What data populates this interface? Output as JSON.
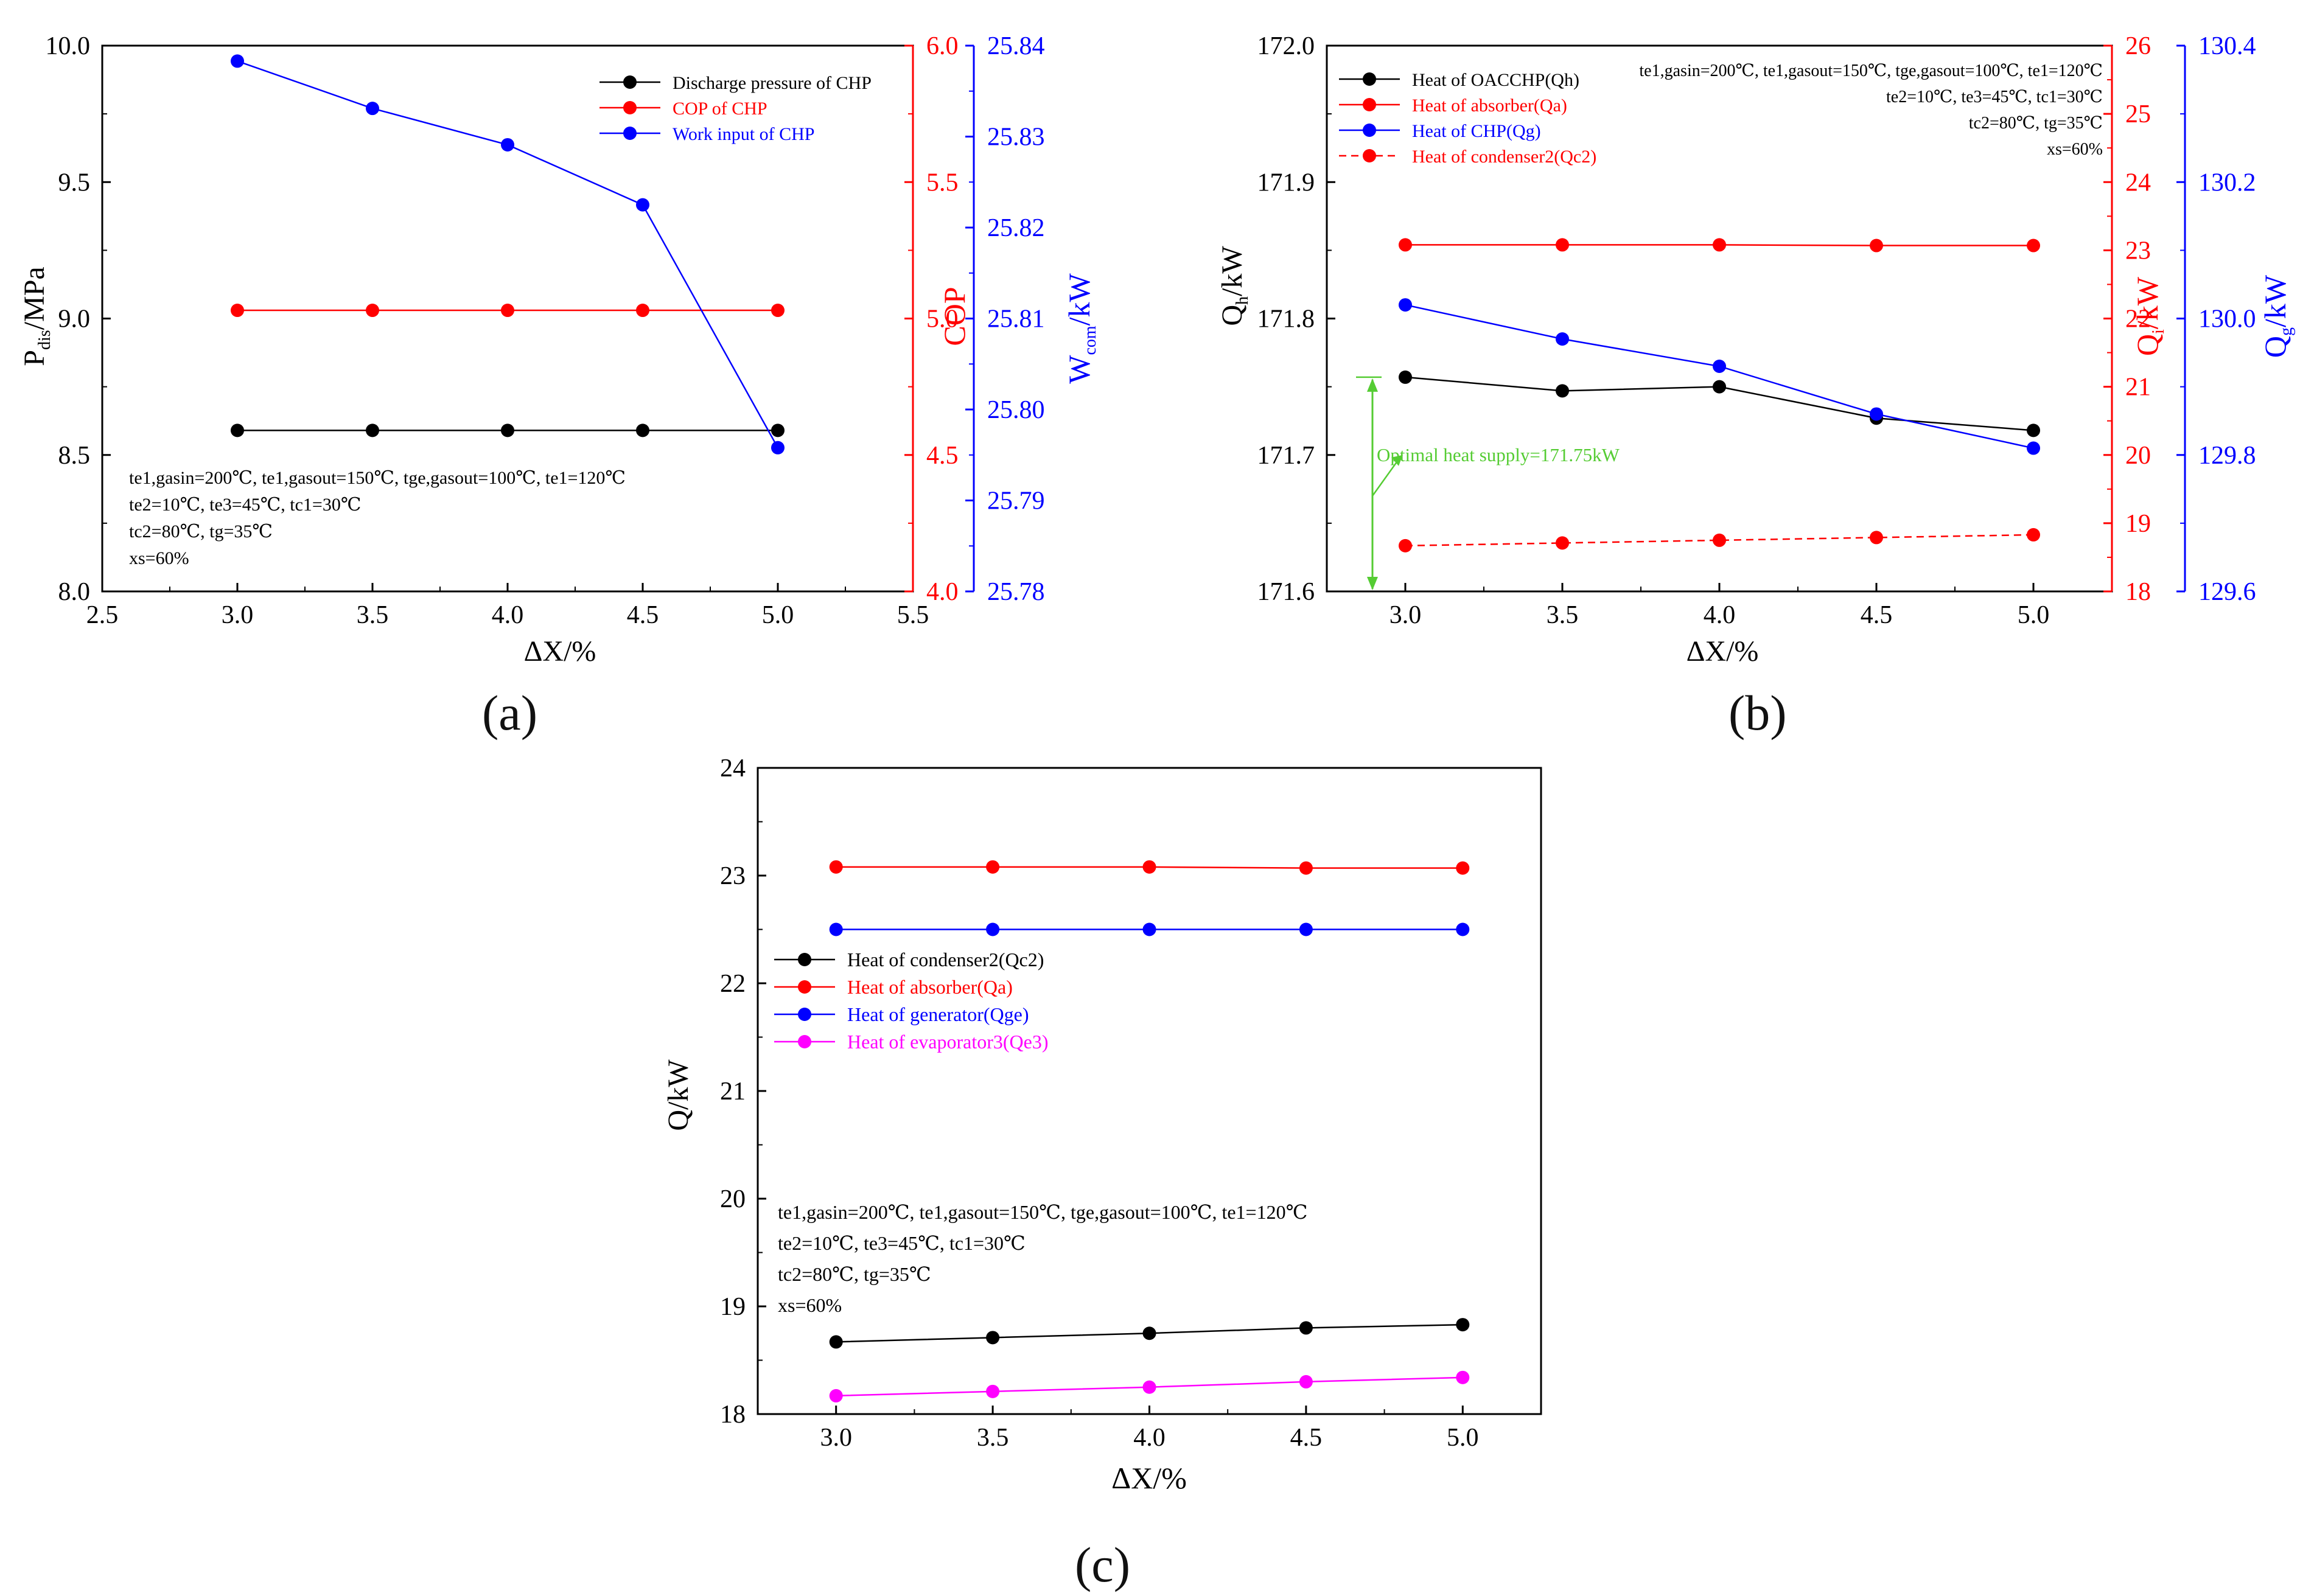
{
  "panel_labels": {
    "a": "(a)",
    "b": "(b)",
    "c": "(c)"
  },
  "axis_text": {
    "a_ylabel_left": "P",
    "a_ylabel_left_sub": "dis",
    "a_ylabel_left_tail": "/MPa",
    "a_ylabel_right1": "COP",
    "a_ylabel_right2": "W",
    "a_ylabel_right2_sub": "com",
    "a_ylabel_right2_tail": "/kW",
    "b_ylabel_left": "Q",
    "b_ylabel_left_sub": "h",
    "b_ylabel_left_tail": "/kW",
    "b_ylabel_right1": "Q",
    "b_ylabel_right1_sub": "i",
    "b_ylabel_right1_tail": "/kW",
    "b_ylabel_right2": "Q",
    "b_ylabel_right2_sub": "g",
    "b_ylabel_right2_tail": "/kW",
    "c_ylabel": "Q/kW"
  },
  "conditions": {
    "line1": "te1,gasin=200℃,  te1,gasout=150℃, tge,gasout=100℃,  te1=120℃",
    "line2": "te2=10℃, te3=45℃, tc1=30℃",
    "line3": "tc2=80℃, tg=35℃",
    "line4": "xs=60%"
  },
  "conditions_b": {
    "line1": "te1,gasin=200℃,  te1,gasout=150℃, tge,gasout=100℃,  te1=120℃",
    "line2": "te2=10℃, te3=45℃, tc1=30℃",
    "line3": "tc2=80℃, tg=35℃",
    "line4": "xs=60%"
  },
  "annotation_b": "Optimal heat supply=171.75kW",
  "chart_data": [
    {
      "id": "a",
      "type": "line",
      "xlabel": "ΔX/%",
      "xlim": [
        2.5,
        5.5
      ],
      "xticks": [
        "2.5",
        "3.0",
        "3.5",
        "4.0",
        "4.5",
        "5.0",
        "5.5"
      ],
      "x": [
        3.0,
        3.5,
        4.0,
        4.5,
        5.0
      ],
      "axes": [
        {
          "id": "left",
          "label": "Pdis/MPa",
          "lim": [
            8.0,
            10.0
          ],
          "ticks": [
            "8.0",
            "8.5",
            "9.0",
            "9.5",
            "10.0"
          ],
          "color": "#000000"
        },
        {
          "id": "right1",
          "label": "COP",
          "lim": [
            4.0,
            6.0
          ],
          "ticks": [
            "4.0",
            "4.5",
            "5.0",
            "5.5",
            "6.0"
          ],
          "color": "#ff0000"
        },
        {
          "id": "right2",
          "label": "Wcom/kW",
          "lim": [
            25.78,
            25.84
          ],
          "ticks": [
            "25.78",
            "25.79",
            "25.80",
            "25.81",
            "25.82",
            "25.83",
            "25.84"
          ],
          "color": "#0000ff"
        }
      ],
      "series": [
        {
          "name": "Discharge pressure of CHP",
          "axis": "left",
          "color": "#000000",
          "dashed": false,
          "values": [
            8.59,
            8.59,
            8.59,
            8.59,
            8.59
          ]
        },
        {
          "name": "COP of CHP",
          "axis": "right1",
          "color": "#ff0000",
          "dashed": false,
          "values": [
            5.03,
            5.03,
            5.03,
            5.03,
            5.03
          ]
        },
        {
          "name": "Work input of CHP",
          "axis": "right2",
          "color": "#0000ff",
          "dashed": false,
          "values": [
            25.8383,
            25.8331,
            25.8291,
            25.8225,
            25.7958
          ]
        }
      ]
    },
    {
      "id": "b",
      "type": "line",
      "xlabel": "ΔX/%",
      "xlim": [
        2.75,
        5.25
      ],
      "xticks": [
        "3.0",
        "3.5",
        "4.0",
        "4.5",
        "5.0"
      ],
      "x": [
        3.0,
        3.5,
        4.0,
        4.5,
        5.0
      ],
      "axes": [
        {
          "id": "left",
          "label": "Qh/kW",
          "lim": [
            171.6,
            172.0
          ],
          "ticks": [
            "171.6",
            "171.7",
            "171.8",
            "171.9",
            "172.0"
          ],
          "color": "#000000"
        },
        {
          "id": "right1",
          "label": "Qi/kW",
          "lim": [
            18,
            26
          ],
          "ticks": [
            "18",
            "19",
            "20",
            "21",
            "22",
            "23",
            "24",
            "25",
            "26"
          ],
          "color": "#ff0000"
        },
        {
          "id": "right2",
          "label": "Qg/kW",
          "lim": [
            129.6,
            130.4
          ],
          "ticks": [
            "129.6",
            "129.8",
            "130.0",
            "130.2",
            "130.4"
          ],
          "color": "#0000ff"
        }
      ],
      "series": [
        {
          "name": "Heat of OACCHP(Qh)",
          "axis": "left",
          "color": "#000000",
          "dashed": false,
          "values": [
            171.757,
            171.747,
            171.75,
            171.727,
            171.718
          ]
        },
        {
          "name": "Heat of absorber(Qa)",
          "axis": "right1",
          "color": "#ff0000",
          "dashed": false,
          "values": [
            23.08,
            23.08,
            23.08,
            23.07,
            23.07
          ]
        },
        {
          "name": "Heat of CHP(Qg)",
          "axis": "right2",
          "color": "#0000ff",
          "dashed": false,
          "values": [
            130.02,
            129.97,
            129.93,
            129.86,
            129.81
          ]
        },
        {
          "name": "Heat of condenser2(Qc2)",
          "axis": "right1",
          "color": "#ff0000",
          "dashed": true,
          "values": [
            18.67,
            18.71,
            18.75,
            18.79,
            18.83
          ]
        }
      ]
    },
    {
      "id": "c",
      "type": "line",
      "xlabel": "ΔX/%",
      "xlim": [
        2.75,
        5.25
      ],
      "xticks": [
        "3.0",
        "3.5",
        "4.0",
        "4.5",
        "5.0"
      ],
      "x": [
        3.0,
        3.5,
        4.0,
        4.5,
        5.0
      ],
      "ylabel": "Q/kW",
      "ylim": [
        18,
        24
      ],
      "yticks": [
        "18",
        "19",
        "20",
        "21",
        "22",
        "23",
        "24"
      ],
      "series": [
        {
          "name": "Heat of condenser2(Qc2)",
          "color": "#000000",
          "values": [
            18.67,
            18.71,
            18.75,
            18.8,
            18.83
          ]
        },
        {
          "name": "Heat of absorber(Qa)",
          "color": "#ff0000",
          "values": [
            23.08,
            23.08,
            23.08,
            23.07,
            23.07
          ]
        },
        {
          "name": "Heat of generator(Qge)",
          "color": "#0000ff",
          "values": [
            22.5,
            22.5,
            22.5,
            22.5,
            22.5
          ]
        },
        {
          "name": "Heat of evaporator3(Qe3)",
          "color": "#ff00ff",
          "values": [
            18.17,
            18.21,
            18.25,
            18.3,
            18.34
          ]
        }
      ]
    }
  ]
}
